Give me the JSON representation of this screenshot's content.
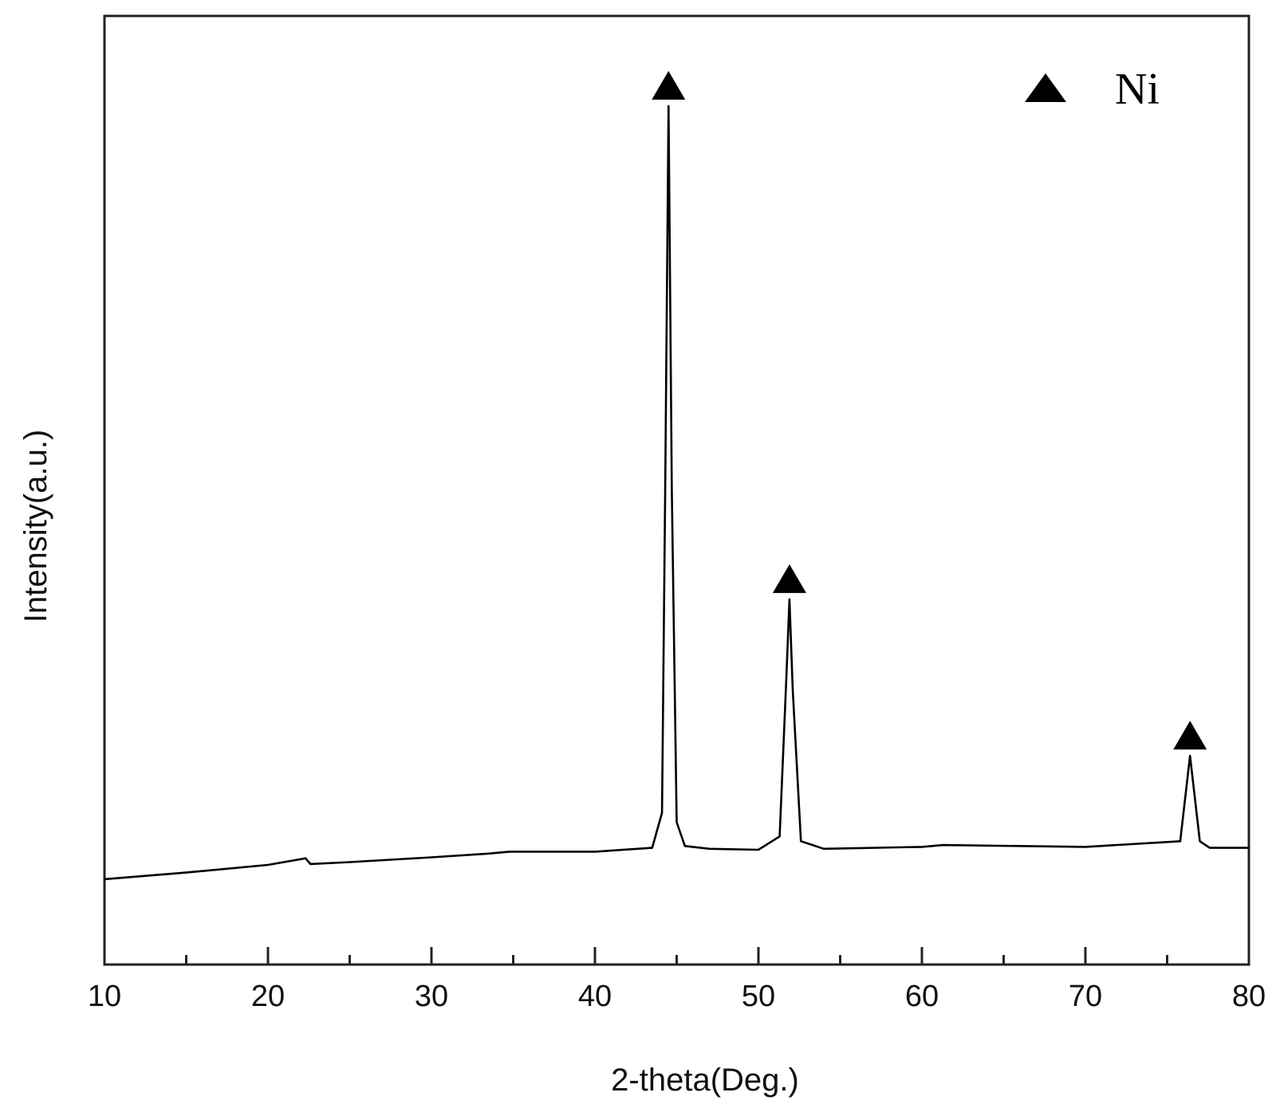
{
  "chart_data": {
    "type": "line",
    "title": "",
    "xlabel": "2-theta(Deg.)",
    "ylabel": "Intensity(a.u.)",
    "xlim": [
      10,
      80
    ],
    "ylim": [
      0,
      1
    ],
    "y_ticks_labeled": false,
    "grid": false,
    "x_ticks": {
      "major": [
        10,
        20,
        30,
        40,
        50,
        60,
        70,
        80
      ],
      "major_labels": [
        "10",
        "20",
        "30",
        "40",
        "50",
        "60",
        "70",
        "80"
      ],
      "minor": [
        15,
        25,
        35,
        45,
        55,
        65,
        75
      ]
    },
    "series": [
      {
        "name": "",
        "color": "#000000",
        "x": [
          10,
          15,
          20,
          22.3,
          22.6,
          25,
          30,
          33.5,
          34.8,
          40,
          43.5,
          44.1,
          44.3,
          44.5,
          44.7,
          45.0,
          45.5,
          47,
          50,
          51.3,
          51.7,
          51.9,
          52.1,
          52.6,
          54,
          60,
          61.3,
          70,
          75.8,
          76.2,
          76.4,
          76.6,
          77.0,
          77.6,
          80
        ],
        "y": [
          0.09,
          0.097,
          0.105,
          0.112,
          0.106,
          0.108,
          0.113,
          0.117,
          0.119,
          0.119,
          0.123,
          0.16,
          0.5,
          0.905,
          0.5,
          0.15,
          0.125,
          0.122,
          0.121,
          0.135,
          0.3,
          0.385,
          0.29,
          0.13,
          0.122,
          0.124,
          0.126,
          0.124,
          0.13,
          0.19,
          0.22,
          0.19,
          0.13,
          0.123,
          0.123
        ]
      }
    ],
    "peak_markers": [
      {
        "x": 44.5,
        "label": "Ni"
      },
      {
        "x": 51.9,
        "label": "Ni"
      },
      {
        "x": 76.4,
        "label": "Ni"
      }
    ],
    "legend": {
      "placement": "top-right",
      "entries": [
        {
          "marker": "black-triangle",
          "label": "Ni"
        }
      ]
    }
  }
}
